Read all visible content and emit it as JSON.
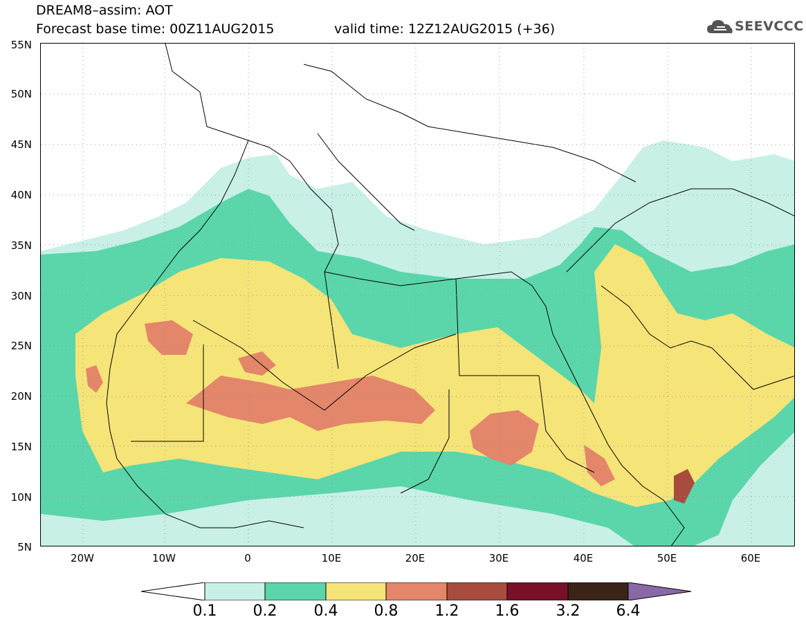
{
  "header": {
    "line1": "DREAM8–assim: AOT",
    "line2": "Forecast base time: 00Z11AUG2015",
    "line3": "valid time: 12Z12AUG2015 (+36)"
  },
  "logo": {
    "text": "SEEVCCC",
    "icon": "cloud-icon"
  },
  "map": {
    "lat_labels": [
      "55N",
      "50N",
      "45N",
      "40N",
      "35N",
      "30N",
      "25N",
      "20N",
      "15N",
      "10N",
      "5N"
    ],
    "lon_labels": [
      "20W",
      "10W",
      "0",
      "10E",
      "20E",
      "30E",
      "40E",
      "50E",
      "60E"
    ],
    "lat_range": [
      5,
      55
    ],
    "lon_range": [
      -25,
      65
    ],
    "grid": "dotted"
  },
  "colorbar": {
    "levels": [
      "0.1",
      "0.2",
      "0.4",
      "0.8",
      "1.2",
      "1.6",
      "3.2",
      "6.4"
    ],
    "colors": [
      "#ffffff",
      "#c8f0e6",
      "#5ad6aa",
      "#f5e478",
      "#e3866a",
      "#a84c3e",
      "#7a1028",
      "#3a2416",
      "#8a68a8"
    ]
  }
}
